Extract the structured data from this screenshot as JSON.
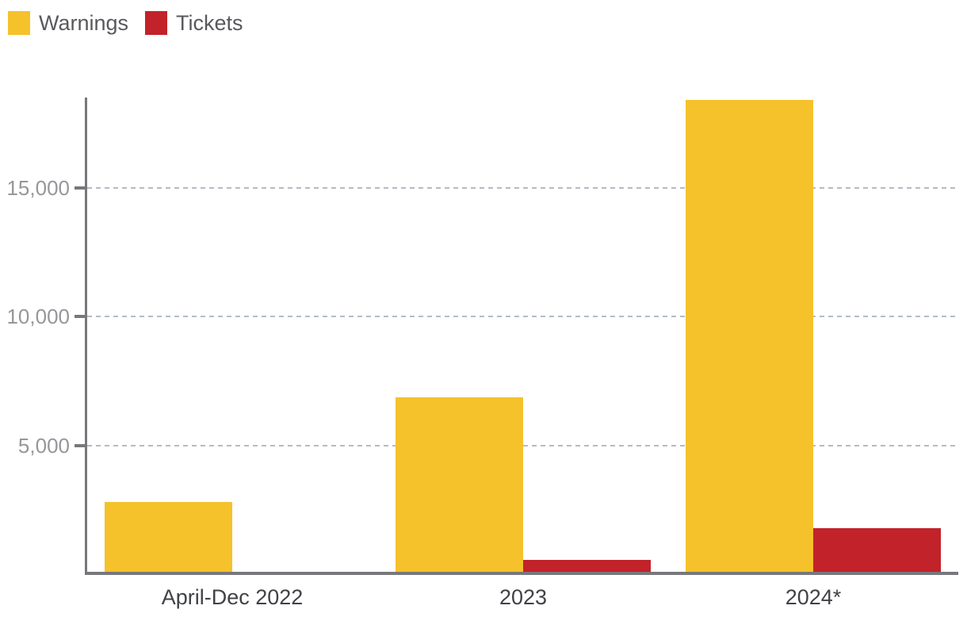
{
  "legend": {
    "items": [
      {
        "label": "Warnings",
        "color": "#f5c22b"
      },
      {
        "label": "Tickets",
        "color": "#c2222a"
      }
    ]
  },
  "chart_data": {
    "type": "bar",
    "title": "",
    "xlabel": "",
    "ylabel": "",
    "categories": [
      "April-Dec 2022",
      "2023",
      "2024*"
    ],
    "series": [
      {
        "name": "Warnings",
        "color": "#f5c22b",
        "values": [
          2800,
          6850,
          18400
        ]
      },
      {
        "name": "Tickets",
        "color": "#c2222a",
        "values": [
          0,
          550,
          1780
        ]
      }
    ],
    "yticks": [
      {
        "value": 5000,
        "label": "5,000"
      },
      {
        "value": 10000,
        "label": "10,000"
      },
      {
        "value": 15000,
        "label": "15,000"
      }
    ],
    "ylim": [
      0,
      18500
    ],
    "grid": "horizontal dashed",
    "legend_position": "top-left",
    "colors": {
      "axis": "#77787b",
      "gridline": "#b4bcc3",
      "ytick_label": "#95979a",
      "category_label": "#414247",
      "legend_label": "#58595c",
      "background": "#ffffff"
    }
  }
}
